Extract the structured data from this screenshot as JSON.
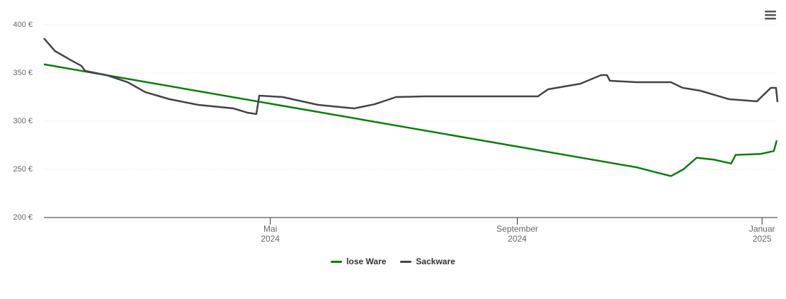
{
  "chart_data": {
    "type": "line",
    "xlim": [
      2024.023,
      2025.021
    ],
    "xticks": [
      {
        "value": 2024.331,
        "label": "Mai 2024"
      },
      {
        "value": 2024.667,
        "label": "September 2024"
      },
      {
        "value": 2025.0,
        "label": "Januar 2025"
      }
    ],
    "ylim": [
      200,
      400
    ],
    "yticks": [
      {
        "value": 200,
        "label": "200 €"
      },
      {
        "value": 250,
        "label": "250 €"
      },
      {
        "value": 300,
        "label": "300 €"
      },
      {
        "value": 350,
        "label": "350 €"
      },
      {
        "value": 400,
        "label": "400 €"
      }
    ],
    "grid": true,
    "series": [
      {
        "name": "lose Ware",
        "color": "#0a7f0a",
        "x": [
          2024.023,
          2024.83,
          2024.855,
          2024.876,
          2024.893,
          2024.911,
          2024.935,
          2024.958,
          2024.964,
          2024.998,
          2025.016,
          2025.02
        ],
        "values": [
          359,
          252,
          247,
          243,
          250,
          262,
          260,
          256,
          265,
          266,
          269,
          280
        ]
      },
      {
        "name": "Sackware",
        "color": "#444448",
        "x": [
          2024.023,
          2024.038,
          2024.06,
          2024.074,
          2024.079,
          2024.108,
          2024.137,
          2024.161,
          2024.194,
          2024.233,
          2024.281,
          2024.3,
          2024.312,
          2024.316,
          2024.348,
          2024.396,
          2024.445,
          2024.473,
          2024.502,
          2024.541,
          2024.695,
          2024.709,
          2024.753,
          2024.781,
          2024.789,
          2024.793,
          2024.83,
          2024.876,
          2024.892,
          2024.916,
          2024.955,
          2024.993,
          2025.012,
          2025.019,
          2025.021
        ],
        "values": [
          386,
          372.8,
          363.2,
          357.4,
          352.2,
          347.8,
          340.4,
          330.1,
          322.8,
          316.9,
          313.2,
          308.8,
          307.4,
          326.5,
          325,
          316.9,
          313.2,
          317.6,
          325,
          325.7,
          325.7,
          333.1,
          338.9,
          347.8,
          347.8,
          341.9,
          340.4,
          340.4,
          334.6,
          331.6,
          322.8,
          320.6,
          334.6,
          334.6,
          319.9
        ]
      }
    ]
  }
}
